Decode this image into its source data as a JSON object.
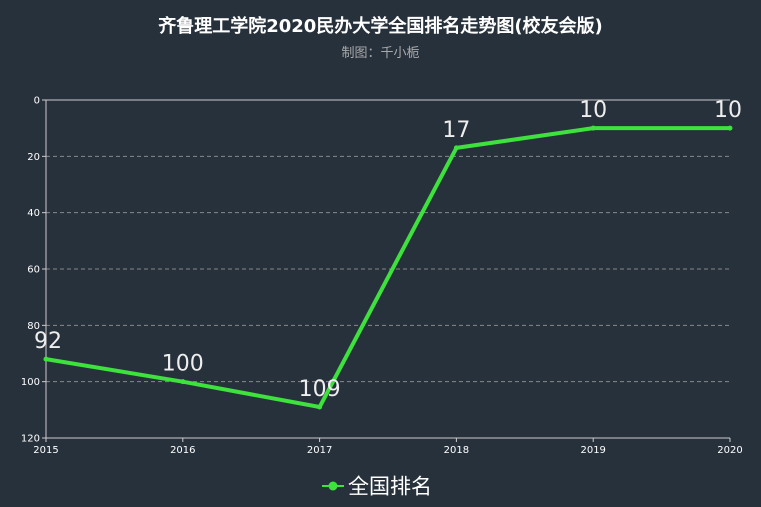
{
  "title": "齐鲁理工学院2020民办大学全国排名走势图(校友会版)",
  "subtitle": "制图：千小栀",
  "colors": {
    "background": "#27313c",
    "line": "#3de23d",
    "axis": "#cccccc",
    "grid": "#888888"
  },
  "chart_data": {
    "type": "line",
    "title": "齐鲁理工学院2020民办大学全国排名走势图(校友会版)",
    "subtitle": "制图：千小栀",
    "x": [
      "2015",
      "2016",
      "2017",
      "2018",
      "2019",
      "2020"
    ],
    "series": [
      {
        "name": "全国排名",
        "values": [
          92,
          100,
          109,
          17,
          10,
          10
        ]
      }
    ],
    "yticks": [
      "0",
      "20",
      "40",
      "60",
      "80",
      "100",
      "120"
    ],
    "ylim": [
      0,
      120
    ],
    "y_inverted": true,
    "grid": true,
    "legend_position": "bottom-center"
  }
}
